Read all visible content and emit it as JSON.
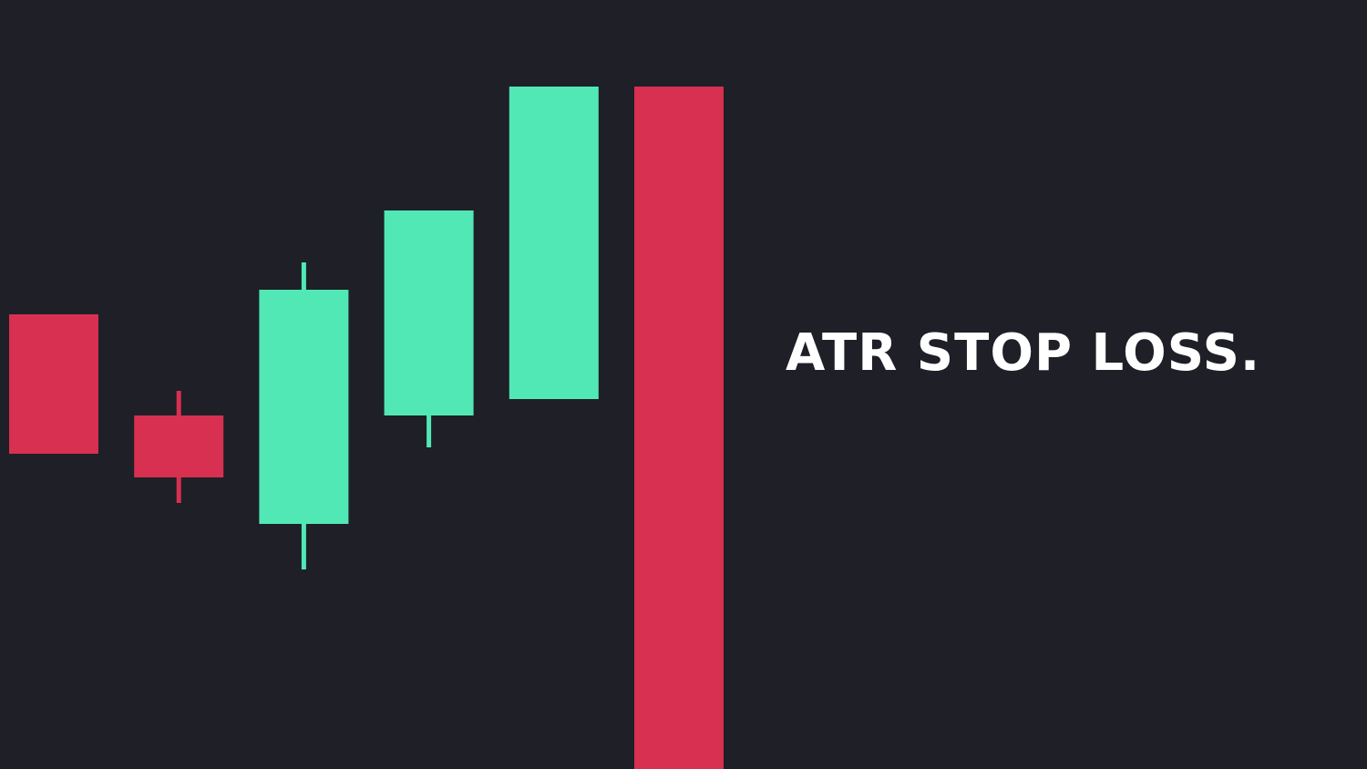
{
  "headline": "ATR STOP LOSS.",
  "colors": {
    "background": "#1e1f27",
    "bullish": "#52e8b6",
    "bearish": "#d83050",
    "text": "#ffffff"
  },
  "chart_data": {
    "type": "candlestick",
    "grid": false,
    "axes_visible": false,
    "ylim": [
      0,
      844
    ],
    "candles": [
      {
        "direction": "down",
        "open": 499,
        "close": 346,
        "high": 499,
        "low": 346
      },
      {
        "direction": "down",
        "open": 388,
        "close": 320,
        "high": 415,
        "low": 292
      },
      {
        "direction": "up",
        "open": 269,
        "close": 526,
        "high": 556,
        "low": 219
      },
      {
        "direction": "up",
        "open": 388,
        "close": 613,
        "high": 613,
        "low": 353
      },
      {
        "direction": "up",
        "open": 406,
        "close": 749,
        "high": 749,
        "low": 406
      },
      {
        "direction": "down",
        "open": 749,
        "close": 0,
        "high": 749,
        "low": 0
      }
    ]
  }
}
